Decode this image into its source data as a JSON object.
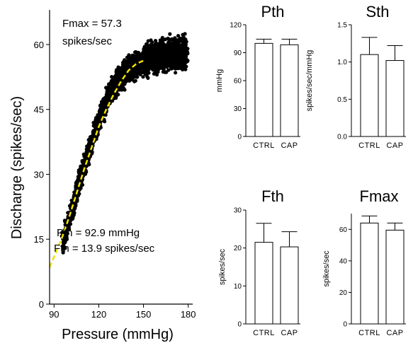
{
  "chart_data": [
    {
      "type": "scatter",
      "title": "",
      "xlabel": "Pressure (mmHg)",
      "ylabel": "Discharge (spikes/sec)",
      "xlim": [
        87,
        183
      ],
      "ylim": [
        0,
        68
      ],
      "xticks": [
        90,
        120,
        150,
        180
      ],
      "yticks": [
        0,
        15,
        30,
        45,
        60
      ],
      "annotations": [
        {
          "text": "Fmax = 57.3"
        },
        {
          "text": "spikes/sec"
        },
        {
          "text": "Pth = 92.9 mmHg"
        },
        {
          "text": "Fth = 13.9 spikes/sec"
        }
      ],
      "fit_line": {
        "color": "#f0e000",
        "dash": true,
        "x": [
          87,
          95,
          100,
          105,
          110,
          115,
          120,
          125,
          130,
          135,
          140,
          145,
          150
        ],
        "y": [
          8.5,
          15,
          20,
          25.5,
          31,
          36,
          41,
          45,
          48.5,
          51.5,
          54,
          55.5,
          56.3
        ]
      },
      "curve": [
        [
          95,
          14
        ],
        [
          98,
          17
        ],
        [
          100,
          19.5
        ],
        [
          103,
          23
        ],
        [
          106,
          27
        ],
        [
          109,
          30.5
        ],
        [
          112,
          34
        ],
        [
          115,
          37
        ],
        [
          118,
          40.5
        ],
        [
          121,
          43.5
        ],
        [
          124,
          46
        ],
        [
          127,
          48
        ],
        [
          130,
          50
        ],
        [
          133,
          51.5
        ],
        [
          136,
          52.8
        ],
        [
          139,
          53.8
        ],
        [
          142,
          54.6
        ],
        [
          145,
          55.3
        ],
        [
          150,
          56.2
        ],
        [
          155,
          56.9
        ],
        [
          160,
          57.3
        ],
        [
          165,
          57.5
        ],
        [
          170,
          57.7
        ],
        [
          175,
          57.8
        ],
        [
          179,
          57.9
        ]
      ],
      "x_min": 95,
      "x_max": 179,
      "spread": 2.2,
      "grid": false,
      "marker_color": "#000000"
    },
    {
      "type": "bar",
      "title": "Pth",
      "ylabel": "mmHg",
      "categories": [
        "CTRL",
        "CAP"
      ],
      "values": [
        100,
        98.5
      ],
      "errors": [
        4.5,
        6
      ],
      "ylim": [
        0,
        120
      ],
      "yticks": [
        0,
        30,
        60,
        90,
        120
      ],
      "ytick_labels": [
        "0",
        "30",
        "60",
        "90",
        "120"
      ]
    },
    {
      "type": "bar",
      "title": "Sth",
      "ylabel": "spikes/sec/mmHg",
      "categories": [
        "CTRL",
        "CAP"
      ],
      "values": [
        1.1,
        1.02
      ],
      "errors": [
        0.23,
        0.2
      ],
      "ylim": [
        0,
        1.5
      ],
      "yticks": [
        0,
        0.5,
        1.0,
        1.5
      ],
      "ytick_labels": [
        "0.0",
        "0.5",
        "1.0",
        "1.5"
      ]
    },
    {
      "type": "bar",
      "title": "Fth",
      "ylabel": "spikes/sec",
      "categories": [
        "CTRL",
        "CAP"
      ],
      "values": [
        21.5,
        20.3
      ],
      "errors": [
        5,
        4
      ],
      "ylim": [
        0,
        30
      ],
      "yticks": [
        0,
        10,
        20,
        30
      ],
      "ytick_labels": [
        "0",
        "10",
        "20",
        "30"
      ]
    },
    {
      "type": "bar",
      "title": "Fmax",
      "ylabel": "spikes/sec",
      "categories": [
        "CTRL",
        "CAP"
      ],
      "values": [
        64,
        59.5
      ],
      "errors": [
        4.5,
        4.5
      ],
      "ylim": [
        0,
        70
      ],
      "yticks": [
        0,
        20,
        40,
        60
      ],
      "ytick_labels": [
        "0",
        "20",
        "40",
        "60"
      ]
    }
  ]
}
